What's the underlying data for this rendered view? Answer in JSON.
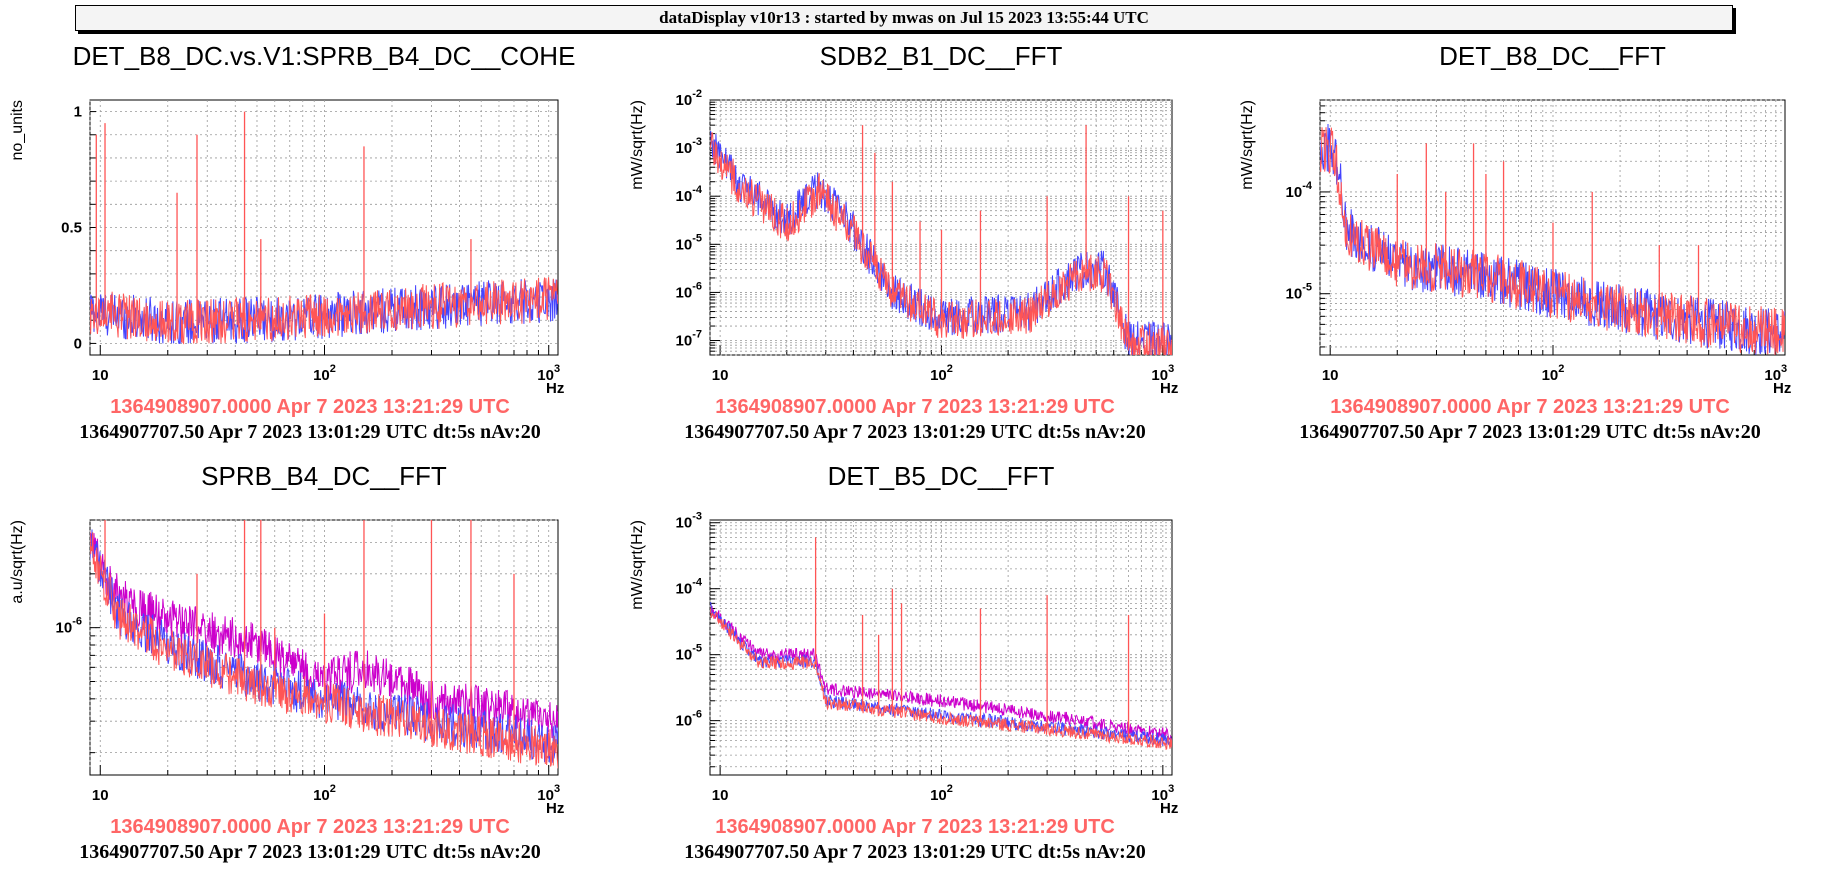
{
  "header": {
    "title": "dataDisplay v10r13 : started by mwas on Jul 15 2023 13:55:44 UTC"
  },
  "colors": {
    "ref": "#ff5555",
    "cur": "#4444ff",
    "ref2": "#cc00cc",
    "grid": "#999999"
  },
  "chart_data": [
    {
      "id": "p1",
      "type": "line",
      "title": "DET_B8_DC.vs.V1:SPRB_B4_DC__COHE",
      "ylabel": "no_units",
      "xlabel": "Hz",
      "xscale": "log",
      "xlim": [
        9,
        1100
      ],
      "yscale": "linear",
      "ylim": [
        -0.05,
        1.05
      ],
      "yticks": [
        {
          "v": 0,
          "t": "0"
        },
        {
          "v": 0.5,
          "t": "0.5"
        },
        {
          "v": 1,
          "t": "1"
        }
      ],
      "timestamp_ref": "1364908907.0000 Apr 7 2023 13:21:29 UTC",
      "timestamp_cur": "1364907707.50 Apr 7 2023 13:01:29 UTC dt:5s nAv:20",
      "series": [
        {
          "color": "#4444ff",
          "points": [
            [
              9,
              0.1
            ],
            [
              20,
              0.05
            ],
            [
              50,
              0.06
            ],
            [
              100,
              0.08
            ],
            [
              300,
              0.12
            ],
            [
              1100,
              0.15
            ]
          ],
          "noise": 0.1
        },
        {
          "color": "#ff5555",
          "points": [
            [
              9,
              0.1
            ],
            [
              20,
              0.05
            ],
            [
              50,
              0.06
            ],
            [
              100,
              0.08
            ],
            [
              300,
              0.12
            ],
            [
              1100,
              0.15
            ]
          ],
          "noise": 0.1
        }
      ],
      "peaks": [
        [
          9.6,
          0.9
        ],
        [
          10.5,
          0.95
        ],
        [
          22,
          0.65
        ],
        [
          27,
          0.9
        ],
        [
          44,
          1.0
        ],
        [
          52,
          0.45
        ],
        [
          150,
          0.85
        ],
        [
          450,
          0.45
        ]
      ]
    },
    {
      "id": "p2",
      "type": "line",
      "title": "SDB2_B1_DC__FFT",
      "ylabel": "mW/sqrt(Hz)",
      "xlabel": "Hz",
      "xscale": "log",
      "xlim": [
        9,
        1100
      ],
      "yscale": "log",
      "ylim": [
        5e-08,
        0.01
      ],
      "yticks": [
        {
          "v": 1e-07,
          "t": "10^-7"
        },
        {
          "v": 1e-06,
          "t": "10^-6"
        },
        {
          "v": 1e-05,
          "t": "10^-5"
        },
        {
          "v": 0.0001,
          "t": "10^-4"
        },
        {
          "v": 0.001,
          "t": "10^-3"
        },
        {
          "v": 0.01,
          "t": "10^-2"
        }
      ],
      "timestamp_ref": "1364908907.0000 Apr 7 2023 13:21:29 UTC",
      "timestamp_cur": "1364907707.50 Apr 7 2023 13:01:29 UTC dt:5s nAv:20",
      "series": [
        {
          "color": "#4444ff",
          "points": [
            [
              9,
              0.0015
            ],
            [
              12,
              0.0002
            ],
            [
              20,
              3e-05
            ],
            [
              28,
              0.00015
            ],
            [
              40,
              2e-05
            ],
            [
              60,
              1e-06
            ],
            [
              100,
              3e-07
            ],
            [
              250,
              4e-07
            ],
            [
              420,
              3e-06
            ],
            [
              550,
              3e-06
            ],
            [
              700,
              1e-07
            ],
            [
              1100,
              1e-07
            ]
          ],
          "noise": 0.4
        },
        {
          "color": "#ff5555",
          "points": [
            [
              9,
              0.0012
            ],
            [
              12,
              0.00018
            ],
            [
              20,
              2.5e-05
            ],
            [
              28,
              0.00012
            ],
            [
              40,
              1.8e-05
            ],
            [
              60,
              9e-07
            ],
            [
              100,
              2.5e-07
            ],
            [
              250,
              3.5e-07
            ],
            [
              420,
              2.5e-06
            ],
            [
              550,
              2.5e-06
            ],
            [
              700,
              9e-08
            ],
            [
              1100,
              9e-08
            ]
          ],
          "noise": 0.4
        }
      ],
      "peaks": [
        [
          28,
          0.0003
        ],
        [
          33,
          5e-05
        ],
        [
          44,
          0.003
        ],
        [
          50,
          0.0008
        ],
        [
          60,
          0.0002
        ],
        [
          80,
          3e-05
        ],
        [
          100,
          2e-05
        ],
        [
          150,
          5e-05
        ],
        [
          300,
          0.0001
        ],
        [
          450,
          0.003
        ],
        [
          700,
          0.0001
        ],
        [
          1000,
          5e-05
        ]
      ]
    },
    {
      "id": "p3",
      "type": "line",
      "title": "DET_B8_DC__FFT",
      "ylabel": "mW/sqrt(Hz)",
      "xlabel": "Hz",
      "xscale": "log",
      "xlim": [
        9,
        1100
      ],
      "yscale": "log",
      "ylim": [
        2.5e-06,
        0.0008
      ],
      "yticks": [
        {
          "v": 1e-05,
          "t": "10^-5"
        },
        {
          "v": 0.0001,
          "t": "10^-4"
        }
      ],
      "timestamp_ref": "1364908907.0000 Apr 7 2023 13:21:29 UTC",
      "timestamp_cur": "1364907707.50 Apr 7 2023 13:01:29 UTC dt:5s nAv:20",
      "series": [
        {
          "color": "#4444ff",
          "points": [
            [
              9,
              0.0003
            ],
            [
              10.5,
              0.00025
            ],
            [
              12,
              4e-05
            ],
            [
              20,
              2e-05
            ],
            [
              50,
              1.5e-05
            ],
            [
              100,
              1e-05
            ],
            [
              300,
              6e-06
            ],
            [
              1100,
              4e-06
            ]
          ],
          "noise": 0.25
        },
        {
          "color": "#ff5555",
          "points": [
            [
              9,
              0.00028
            ],
            [
              10.5,
              0.00023
            ],
            [
              12,
              3.8e-05
            ],
            [
              20,
              2e-05
            ],
            [
              50,
              1.5e-05
            ],
            [
              100,
              1e-05
            ],
            [
              300,
              6e-06
            ],
            [
              1100,
              4e-06
            ]
          ],
          "noise": 0.25
        }
      ],
      "peaks": [
        [
          20,
          0.00015
        ],
        [
          27,
          0.0003
        ],
        [
          33,
          0.0001
        ],
        [
          44,
          0.0003
        ],
        [
          50,
          0.00015
        ],
        [
          60,
          0.0002
        ],
        [
          100,
          5e-05
        ],
        [
          150,
          0.0001
        ],
        [
          300,
          3e-05
        ],
        [
          450,
          3e-05
        ]
      ]
    },
    {
      "id": "p4",
      "type": "line",
      "title": "SPRB_B4_DC__FFT",
      "ylabel": "a.u/sqrt(Hz)",
      "xlabel": "Hz",
      "xscale": "log",
      "xlim": [
        9,
        1100
      ],
      "yscale": "log",
      "ylim": [
        1.5e-07,
        4e-06
      ],
      "yticks": [
        {
          "v": 1e-06,
          "t": "10^-6"
        }
      ],
      "timestamp_ref": "1364908907.0000 Apr 7 2023 13:21:29 UTC",
      "timestamp_cur": "1364907707.50 Apr 7 2023 13:01:29 UTC dt:5s nAv:20",
      "series": [
        {
          "color": "#cc00cc",
          "points": [
            [
              9,
              3e-06
            ],
            [
              12,
              1.5e-06
            ],
            [
              20,
              1.1e-06
            ],
            [
              50,
              8e-07
            ],
            [
              100,
              5e-07
            ],
            [
              150,
              6e-07
            ],
            [
              300,
              4e-07
            ],
            [
              1100,
              3e-07
            ]
          ],
          "noise": 0.12
        },
        {
          "color": "#4444ff",
          "points": [
            [
              9,
              3e-06
            ],
            [
              12,
              1.2e-06
            ],
            [
              20,
              8e-07
            ],
            [
              50,
              5e-07
            ],
            [
              100,
              4e-07
            ],
            [
              300,
              3e-07
            ],
            [
              1100,
              2.2e-07
            ]
          ],
          "noise": 0.12
        },
        {
          "color": "#ff5555",
          "points": [
            [
              9,
              3e-06
            ],
            [
              12,
              1.15e-06
            ],
            [
              20,
              7.5e-07
            ],
            [
              50,
              4.8e-07
            ],
            [
              100,
              3.8e-07
            ],
            [
              300,
              2.8e-07
            ],
            [
              1100,
              2.1e-07
            ]
          ],
          "noise": 0.12
        }
      ],
      "peaks": [
        [
          10.5,
          4e-06
        ],
        [
          27,
          2e-06
        ],
        [
          44,
          4e-06
        ],
        [
          52,
          4e-06
        ],
        [
          60,
          1e-06
        ],
        [
          100,
          1.2e-06
        ],
        [
          150,
          4e-06
        ],
        [
          300,
          4e-06
        ],
        [
          450,
          4e-06
        ],
        [
          700,
          2e-06
        ]
      ]
    },
    {
      "id": "p5",
      "type": "line",
      "title": "DET_B5_DC__FFT",
      "ylabel": "mW/sqrt(Hz)",
      "xlabel": "Hz",
      "xscale": "log",
      "xlim": [
        9,
        1100
      ],
      "yscale": "log",
      "ylim": [
        1.5e-07,
        0.0011
      ],
      "yticks": [
        {
          "v": 1e-06,
          "t": "10^-6"
        },
        {
          "v": 1e-05,
          "t": "10^-5"
        },
        {
          "v": 0.0001,
          "t": "10^-4"
        },
        {
          "v": 0.001,
          "t": "10^-3"
        }
      ],
      "timestamp_ref": "1364908907.0000 Apr 7 2023 13:21:29 UTC",
      "timestamp_cur": "1364907707.50 Apr 7 2023 13:01:29 UTC dt:5s nAv:20",
      "series": [
        {
          "color": "#cc00cc",
          "points": [
            [
              9,
              5e-05
            ],
            [
              15,
              1e-05
            ],
            [
              27,
              1e-05
            ],
            [
              30,
              3e-06
            ],
            [
              100,
              2e-06
            ],
            [
              300,
              1.2e-06
            ],
            [
              1100,
              6e-07
            ]
          ],
          "noise": 0.1
        },
        {
          "color": "#4444ff",
          "points": [
            [
              9,
              5e-05
            ],
            [
              15,
              8e-06
            ],
            [
              27,
              8e-06
            ],
            [
              30,
              2e-06
            ],
            [
              100,
              1.2e-06
            ],
            [
              300,
              8e-07
            ],
            [
              1100,
              5e-07
            ]
          ],
          "noise": 0.1
        },
        {
          "color": "#ff5555",
          "points": [
            [
              9,
              4.5e-05
            ],
            [
              15,
              7.5e-06
            ],
            [
              27,
              7.5e-06
            ],
            [
              30,
              1.9e-06
            ],
            [
              100,
              1.1e-06
            ],
            [
              300,
              7.5e-07
            ],
            [
              1100,
              4.5e-07
            ]
          ],
          "noise": 0.1
        }
      ],
      "peaks": [
        [
          27,
          0.0006
        ],
        [
          44,
          4e-05
        ],
        [
          52,
          2e-05
        ],
        [
          60,
          0.0001
        ],
        [
          66,
          6e-05
        ],
        [
          150,
          5e-05
        ],
        [
          300,
          8e-05
        ],
        [
          700,
          4e-05
        ]
      ]
    }
  ]
}
